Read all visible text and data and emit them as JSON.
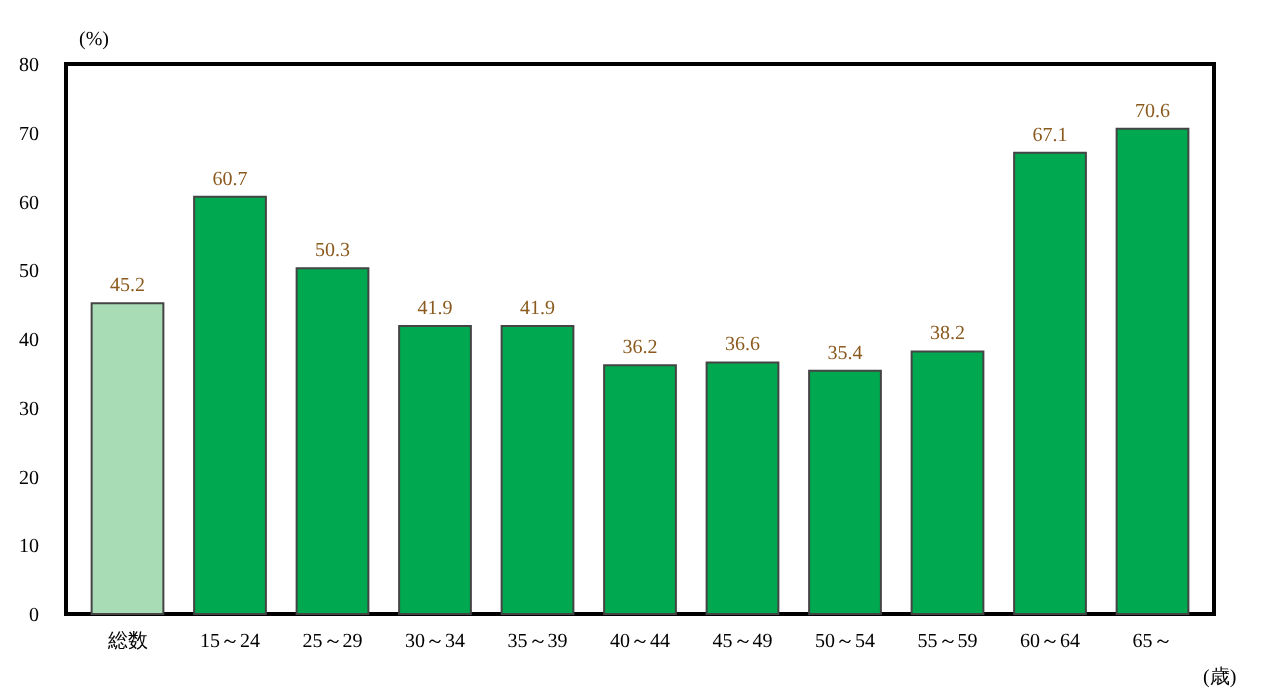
{
  "chart_data": {
    "type": "bar",
    "ylabel": "(%)",
    "xlabel": "(歳)",
    "categories": [
      "総数",
      "15～24",
      "25～29",
      "30～34",
      "35～39",
      "40～44",
      "45～49",
      "50～54",
      "55～59",
      "60～64",
      "65～"
    ],
    "values": [
      45.2,
      60.7,
      50.3,
      41.9,
      41.9,
      36.2,
      36.6,
      35.4,
      38.2,
      67.1,
      70.6
    ],
    "colors": [
      "#a8dcb4",
      "#00a84f",
      "#00a84f",
      "#00a84f",
      "#00a84f",
      "#00a84f",
      "#00a84f",
      "#00a84f",
      "#00a84f",
      "#00a84f",
      "#00a84f"
    ],
    "ylim": [
      0,
      80
    ],
    "yticks": [
      0,
      10,
      20,
      30,
      40,
      50,
      60,
      70,
      80
    ],
    "data_labels": true
  }
}
